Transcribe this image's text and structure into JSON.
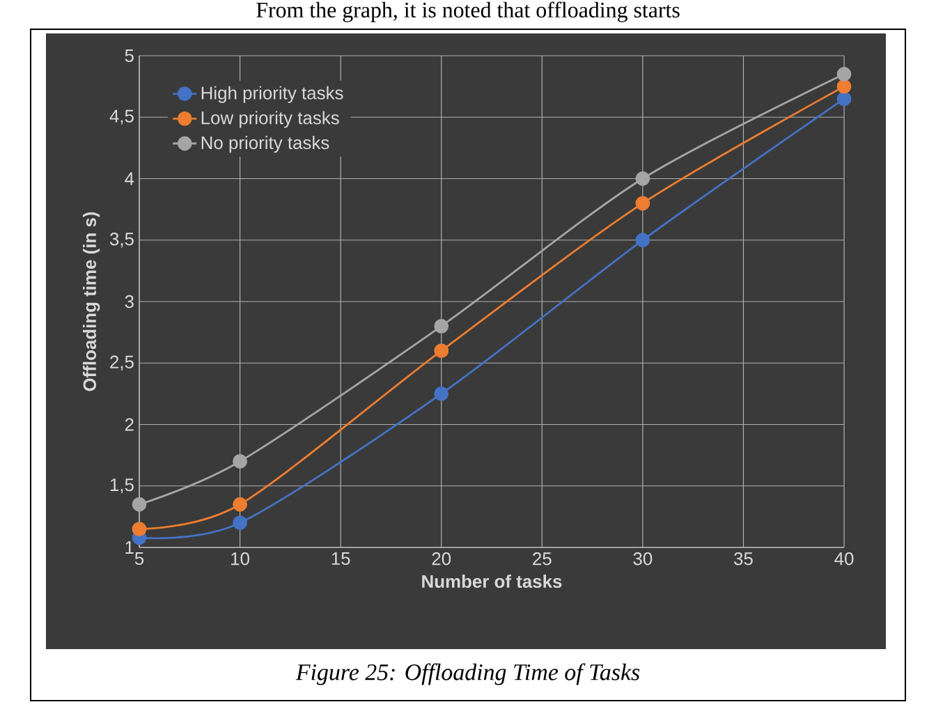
{
  "chart_data": {
    "type": "line",
    "xlabel": "Number of tasks",
    "ylabel": "Offloading time (in s)",
    "annotations": [
      "From the graph, it is noted that offloading starts",
      "Figure 25: Offloading Time of Tasks"
    ],
    "x": [
      5,
      10,
      20,
      30,
      40
    ],
    "series": [
      {
        "name": "High priority tasks",
        "color": "#4472c4",
        "values": [
          1.08,
          1.2,
          2.25,
          3.5,
          4.65
        ]
      },
      {
        "name": "Low priority tasks",
        "color": "#ed7d31",
        "values": [
          1.15,
          1.35,
          2.6,
          3.8,
          4.75
        ]
      },
      {
        "name": "No priority tasks",
        "color": "#a5a5a5",
        "values": [
          1.35,
          1.7,
          2.8,
          4.0,
          4.85
        ]
      }
    ],
    "xlim": [
      5,
      40
    ],
    "xticks": [
      5,
      10,
      15,
      20,
      25,
      30,
      35,
      40
    ],
    "ylim": [
      1,
      5
    ],
    "yticks": [
      1,
      {
        "value": 1.5,
        "label": "1,5"
      },
      2,
      {
        "value": 2.5,
        "label": "2,5"
      },
      3,
      {
        "value": 3.5,
        "label": "3,5"
      },
      4,
      {
        "value": 4.5,
        "label": "4,5"
      },
      5
    ],
    "grid": true,
    "legend": "top left",
    "marker": "circle",
    "line_style": "solid"
  }
}
